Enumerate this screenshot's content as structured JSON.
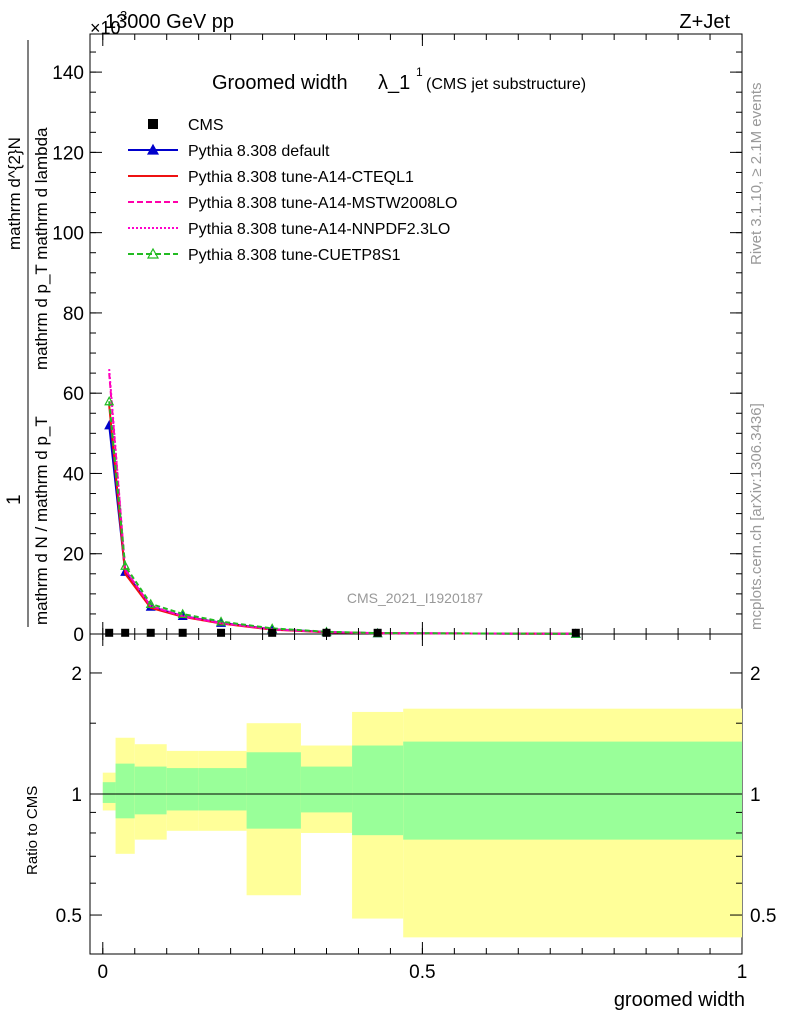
{
  "header": {
    "left": "13000 GeV pp",
    "right": "Z+Jet",
    "exponent": "×10",
    "exponent_power": "3"
  },
  "title": {
    "main": "Groomed width",
    "lambda": "λ_1",
    "sup": "1",
    "sub": "(CMS jet substructure)"
  },
  "side": {
    "rivet": "Rivet 3.1.10, ≥ 2.1M events",
    "mcplots": "mcplots.cern.ch [arXiv:1306.3436]"
  },
  "analysis_id": "CMS_2021_I1920187",
  "axes": {
    "ylabel_top_num": "1",
    "ylabel_top_den": "mathrm d N / mathrm d p_T",
    "ylabel_top_num2": "mathrm d^{2}N",
    "ylabel_top_den2": "mathrm d p_T mathrm d lambda",
    "ylabel_bottom": "Ratio to CMS",
    "xlabel": "groomed width"
  },
  "ticks": {
    "top_y": [
      "0",
      "20",
      "40",
      "60",
      "80",
      "100",
      "120",
      "140"
    ],
    "bottom_y": [
      "0.5",
      "1",
      "2"
    ],
    "x": [
      "0",
      "0.5",
      "1"
    ]
  },
  "legend": [
    {
      "label": "CMS",
      "color": "#000000",
      "style": "marker-square"
    },
    {
      "label": "Pythia 8.308 default",
      "color": "#0000cc",
      "style": "line-triangle"
    },
    {
      "label": "Pythia 8.308 tune-A14-CTEQL1",
      "color": "#ee1111",
      "style": "solid"
    },
    {
      "label": "Pythia 8.308 tune-A14-MSTW2008LO",
      "color": "#ff00aa",
      "style": "dashed"
    },
    {
      "label": "Pythia 8.308 tune-A14-NNPDF2.3LO",
      "color": "#ff00cc",
      "style": "dotted"
    },
    {
      "label": "Pythia 8.308 tune-CUETP8S1",
      "color": "#22bb22",
      "style": "dashed-triangle"
    }
  ],
  "chart_data": {
    "type": "line",
    "x": [
      0.01,
      0.035,
      0.075,
      0.125,
      0.185,
      0.265,
      0.35,
      0.43,
      0.74
    ],
    "xlim": [
      -0.02,
      1.0
    ],
    "ylim": [
      0,
      148
    ],
    "ratio_ylim": [
      0.4,
      2.5
    ],
    "scale_note": "×10^3",
    "cms": [
      0.3,
      0.3,
      0.3,
      0.3,
      0.3,
      0.3,
      0.3,
      0.3,
      0.3
    ],
    "series": [
      {
        "name": "Pythia 8.308 default",
        "color": "#0000cc",
        "values": [
          52,
          15.5,
          6.8,
          4.5,
          2.8,
          1.2,
          0.5,
          0.2,
          0.05
        ]
      },
      {
        "name": "Pythia 8.308 tune-A14-CTEQL1",
        "color": "#ee1111",
        "values": [
          57,
          15.0,
          6.5,
          4.3,
          2.6,
          1.1,
          0.45,
          0.2,
          0.05
        ]
      },
      {
        "name": "Pythia 8.308 tune-A14-MSTW2008LO",
        "color": "#ff00aa",
        "values": [
          65,
          16.0,
          6.9,
          4.4,
          2.7,
          1.15,
          0.47,
          0.2,
          0.05
        ]
      },
      {
        "name": "Pythia 8.308 tune-A14-NNPDF2.3LO",
        "color": "#ff00cc",
        "values": [
          66,
          16.2,
          7.0,
          4.5,
          2.75,
          1.18,
          0.48,
          0.2,
          0.05
        ]
      },
      {
        "name": "Pythia 8.308 tune-CUETP8S1",
        "color": "#22bb22",
        "values": [
          58,
          17.0,
          7.5,
          5.0,
          3.1,
          1.4,
          0.55,
          0.22,
          0.05
        ]
      }
    ],
    "ratio_bins": [
      {
        "x0": 0.0,
        "x1": 0.02,
        "stat": [
          0.95,
          1.07
        ],
        "tot": [
          0.91,
          1.13
        ]
      },
      {
        "x0": 0.02,
        "x1": 0.05,
        "stat": [
          0.87,
          1.19
        ],
        "tot": [
          0.71,
          1.38
        ]
      },
      {
        "x0": 0.05,
        "x1": 0.1,
        "stat": [
          0.89,
          1.17
        ],
        "tot": [
          0.77,
          1.33
        ]
      },
      {
        "x0": 0.1,
        "x1": 0.15,
        "stat": [
          0.91,
          1.16
        ],
        "tot": [
          0.81,
          1.28
        ]
      },
      {
        "x0": 0.15,
        "x1": 0.225,
        "stat": [
          0.91,
          1.16
        ],
        "tot": [
          0.81,
          1.28
        ]
      },
      {
        "x0": 0.225,
        "x1": 0.31,
        "stat": [
          0.82,
          1.27
        ],
        "tot": [
          0.56,
          1.5
        ]
      },
      {
        "x0": 0.31,
        "x1": 0.39,
        "stat": [
          0.9,
          1.17
        ],
        "tot": [
          0.8,
          1.32
        ]
      },
      {
        "x0": 0.39,
        "x1": 0.47,
        "stat": [
          0.79,
          1.32
        ],
        "tot": [
          0.49,
          1.6
        ]
      },
      {
        "x0": 0.47,
        "x1": 1.0,
        "stat": [
          0.77,
          1.35
        ],
        "tot": [
          0.44,
          1.63
        ]
      }
    ]
  }
}
